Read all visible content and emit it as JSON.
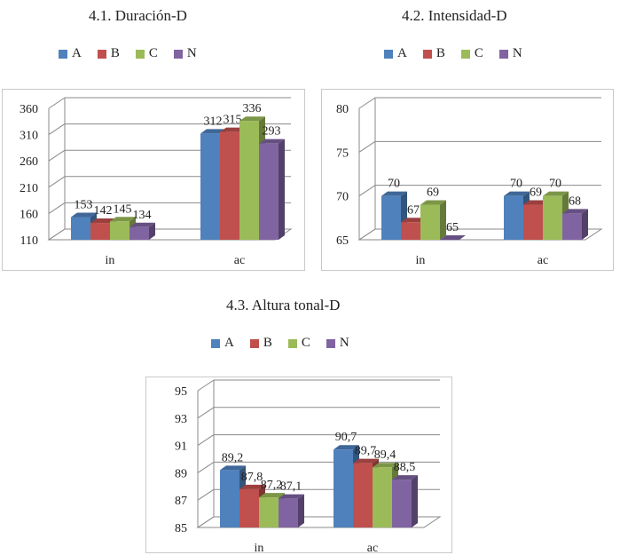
{
  "colors": {
    "A": "#4f81bd",
    "B": "#c0504d",
    "C": "#9bbb59",
    "N": "#8064a2"
  },
  "chart_data": [
    {
      "type": "bar",
      "title": "4.1. Duración-D",
      "categories": [
        "in",
        "ac"
      ],
      "series": [
        {
          "name": "A",
          "values": [
            153,
            312
          ],
          "labels": [
            "153",
            "312"
          ]
        },
        {
          "name": "B",
          "values": [
            142,
            315
          ],
          "labels": [
            "142",
            "315"
          ]
        },
        {
          "name": "C",
          "values": [
            145,
            336
          ],
          "labels": [
            "145",
            "336"
          ]
        },
        {
          "name": "N",
          "values": [
            134,
            293
          ],
          "labels": [
            "134",
            "293"
          ]
        }
      ],
      "ylim": [
        110,
        360
      ],
      "yticks": [
        "110",
        "160",
        "210",
        "260",
        "310",
        "360"
      ],
      "xlabel": "",
      "ylabel": "",
      "legend": "top",
      "grid": true
    },
    {
      "type": "bar",
      "title": "4.2. Intensidad-D",
      "categories": [
        "in",
        "ac"
      ],
      "series": [
        {
          "name": "A",
          "values": [
            70,
            70
          ],
          "labels": [
            "70",
            "70"
          ]
        },
        {
          "name": "B",
          "values": [
            67,
            69
          ],
          "labels": [
            "67",
            "69"
          ]
        },
        {
          "name": "C",
          "values": [
            69,
            70
          ],
          "labels": [
            "69",
            "70"
          ]
        },
        {
          "name": "N",
          "values": [
            65,
            68
          ],
          "labels": [
            "65",
            "68"
          ]
        }
      ],
      "ylim": [
        65,
        80
      ],
      "yticks": [
        "65",
        "70",
        "75",
        "80"
      ],
      "xlabel": "",
      "ylabel": "",
      "legend": "top",
      "grid": true
    },
    {
      "type": "bar",
      "title": "4.3. Altura tonal-D",
      "categories": [
        "in",
        "ac"
      ],
      "series": [
        {
          "name": "A",
          "values": [
            89.2,
            90.7
          ],
          "labels": [
            "89,2",
            "90,7"
          ]
        },
        {
          "name": "B",
          "values": [
            87.8,
            89.7
          ],
          "labels": [
            "87,8",
            "89,7"
          ]
        },
        {
          "name": "C",
          "values": [
            87.2,
            89.4
          ],
          "labels": [
            "87,2",
            "89,4"
          ]
        },
        {
          "name": "N",
          "values": [
            87.1,
            88.5
          ],
          "labels": [
            "87,1",
            "88,5"
          ]
        }
      ],
      "ylim": [
        85,
        95
      ],
      "yticks": [
        "85",
        "87",
        "89",
        "91",
        "93",
        "95"
      ],
      "xlabel": "",
      "ylabel": "",
      "legend": "top",
      "grid": true
    }
  ]
}
